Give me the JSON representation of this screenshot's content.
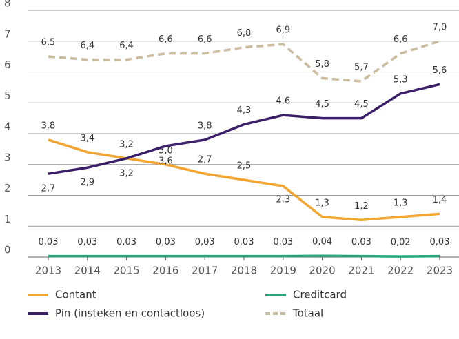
{
  "chart_data": {
    "type": "line",
    "categories": [
      "2013",
      "2014",
      "2015",
      "2016",
      "2017",
      "2018",
      "2019",
      "2020",
      "2021",
      "2022",
      "2023"
    ],
    "ylim": [
      0,
      8
    ],
    "yticks": [
      0,
      1,
      2,
      3,
      4,
      5,
      6,
      7,
      8
    ],
    "grid": true,
    "legend": "bottom",
    "series": [
      {
        "name": "Contant",
        "color": "#f2a531",
        "values": [
          3.8,
          3.4,
          3.2,
          3.0,
          2.7,
          2.5,
          2.3,
          1.3,
          1.2,
          1.3,
          1.4
        ],
        "value_labels": [
          "3,8",
          "3,4",
          "3,2",
          "3,0",
          "2,7",
          "2,5",
          "2,3",
          "1,3",
          "1,2",
          "1,3",
          "1,4"
        ]
      },
      {
        "name": "Pin (insteken en contactloos)",
        "color": "#3b1e68",
        "values": [
          2.7,
          2.9,
          3.2,
          3.6,
          3.8,
          4.3,
          4.6,
          4.5,
          4.5,
          5.3,
          5.6
        ],
        "value_labels": [
          "2,7",
          "2,9",
          "3,2",
          "3,6",
          "3,8",
          "4,3",
          "4,6",
          "4,5",
          "4,5",
          "5,3",
          "5,6"
        ]
      },
      {
        "name": "Creditcard",
        "color": "#2aa57a",
        "values": [
          0.03,
          0.03,
          0.03,
          0.03,
          0.03,
          0.03,
          0.03,
          0.04,
          0.03,
          0.02,
          0.03
        ],
        "value_labels": [
          "0,03",
          "0,03",
          "0,03",
          "0,03",
          "0,03",
          "0,03",
          "0,03",
          "0,04",
          "0,03",
          "0,02",
          "0,03"
        ]
      },
      {
        "name": "Totaal",
        "color": "#cbbb9f",
        "dashed": true,
        "values": [
          6.5,
          6.4,
          6.4,
          6.6,
          6.6,
          6.8,
          6.9,
          5.8,
          5.7,
          6.6,
          7.0
        ],
        "value_labels": [
          "6,5",
          "6,4",
          "6,4",
          "6,6",
          "6,6",
          "6,8",
          "6,9",
          "5,8",
          "5,7",
          "6,6",
          "7,0"
        ]
      }
    ]
  }
}
